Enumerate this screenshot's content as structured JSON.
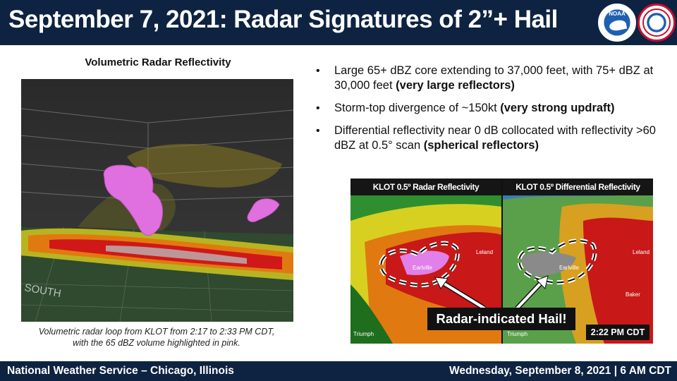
{
  "header": {
    "title": "September 7, 2021: Radar Signatures of 2”+ Hail",
    "logos": [
      {
        "name": "noaa-logo",
        "text": "NOAA"
      },
      {
        "name": "nws-logo",
        "text": "NATIONAL WEATHER SERVICE"
      }
    ]
  },
  "left_panel": {
    "title": "Volumetric  Radar Reflectivity",
    "image_label": "SOUTH",
    "caption_line1": "Volumetric radar loop from KLOT from 2:17 to 2:33 PM CDT,",
    "caption_line2": "with the 65 dBZ volume highlighted in pink."
  },
  "bullets": [
    {
      "text": "Large 65+ dBZ core extending to 37,000 feet, with 75+ dBZ at 30,000 feet ",
      "bold": "(very large reflectors)"
    },
    {
      "text": "Storm-top divergence of ~150kt ",
      "bold": "(very strong updraft)"
    },
    {
      "text": "Differential reflectivity near 0 dB collocated with reflectivity >60 dBZ at 0.5° scan ",
      "bold": "(spherical reflectors)"
    }
  ],
  "radar_panels": {
    "left_label": "KLOT 0.5º Radar Reflectivity",
    "right_label": "KLOT 0.5º Differential Reflectivity",
    "callout": "Radar-indicated Hail!",
    "time": "2:22 PM CDT",
    "towns": {
      "leland_left": "Leland",
      "earlville_left": "Earlville",
      "triumph_left": "Triumph",
      "leland_right": "Leland",
      "earlville_right": "Earlville",
      "baker_right": "Baker",
      "triumph_right": "Triumph"
    }
  },
  "footer": {
    "left": "National Weather Service – Chicago, Illinois",
    "right": "Wednesday, September 8, 2021 | 6 AM CDT"
  },
  "colors": {
    "banner": "#0d2341",
    "hail_core": "#e070e0",
    "callout_bg": "#111111"
  }
}
